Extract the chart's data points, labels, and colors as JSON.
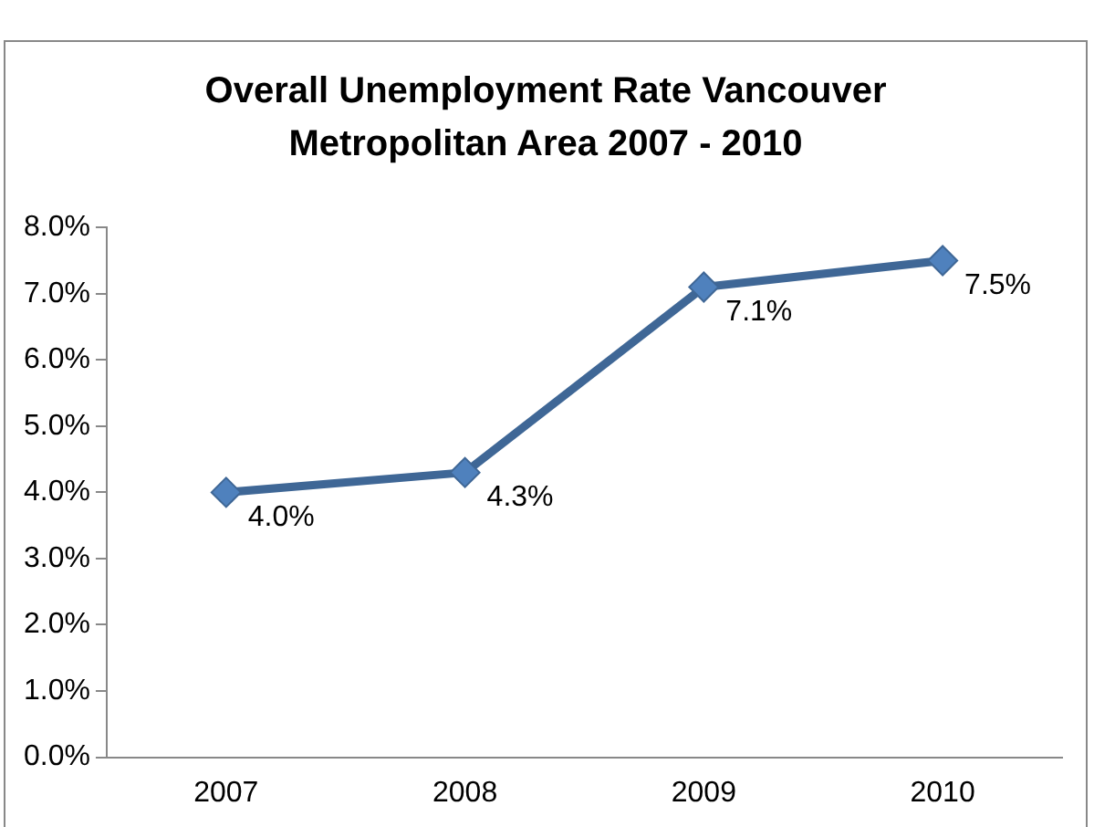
{
  "chart_data": {
    "type": "line",
    "title": "Overall Unemployment Rate Vancouver Metropolitan Area 2007 - 2010",
    "categories": [
      "2007",
      "2008",
      "2009",
      "2010"
    ],
    "series": [
      {
        "color": "#3f6796",
        "values": [
          4.0,
          4.3,
          7.1,
          7.5
        ],
        "value_labels": [
          "4.0%",
          "4.3%",
          "7.1%",
          "7.5%"
        ]
      }
    ],
    "ylim": [
      0,
      8
    ],
    "yticks": [
      {
        "value": 0,
        "label": "0.0%"
      },
      {
        "value": 1,
        "label": "1.0%"
      },
      {
        "value": 2,
        "label": "2.0%"
      },
      {
        "value": 3,
        "label": "3.0%"
      },
      {
        "value": 4,
        "label": "4.0%"
      },
      {
        "value": 5,
        "label": "5.0%"
      },
      {
        "value": 6,
        "label": "6.0%"
      },
      {
        "value": 7,
        "label": "7.0%"
      },
      {
        "value": 8,
        "label": "8.0%"
      }
    ],
    "marker": "diamond",
    "line_style": "solid",
    "grid": false,
    "legend": false
  }
}
